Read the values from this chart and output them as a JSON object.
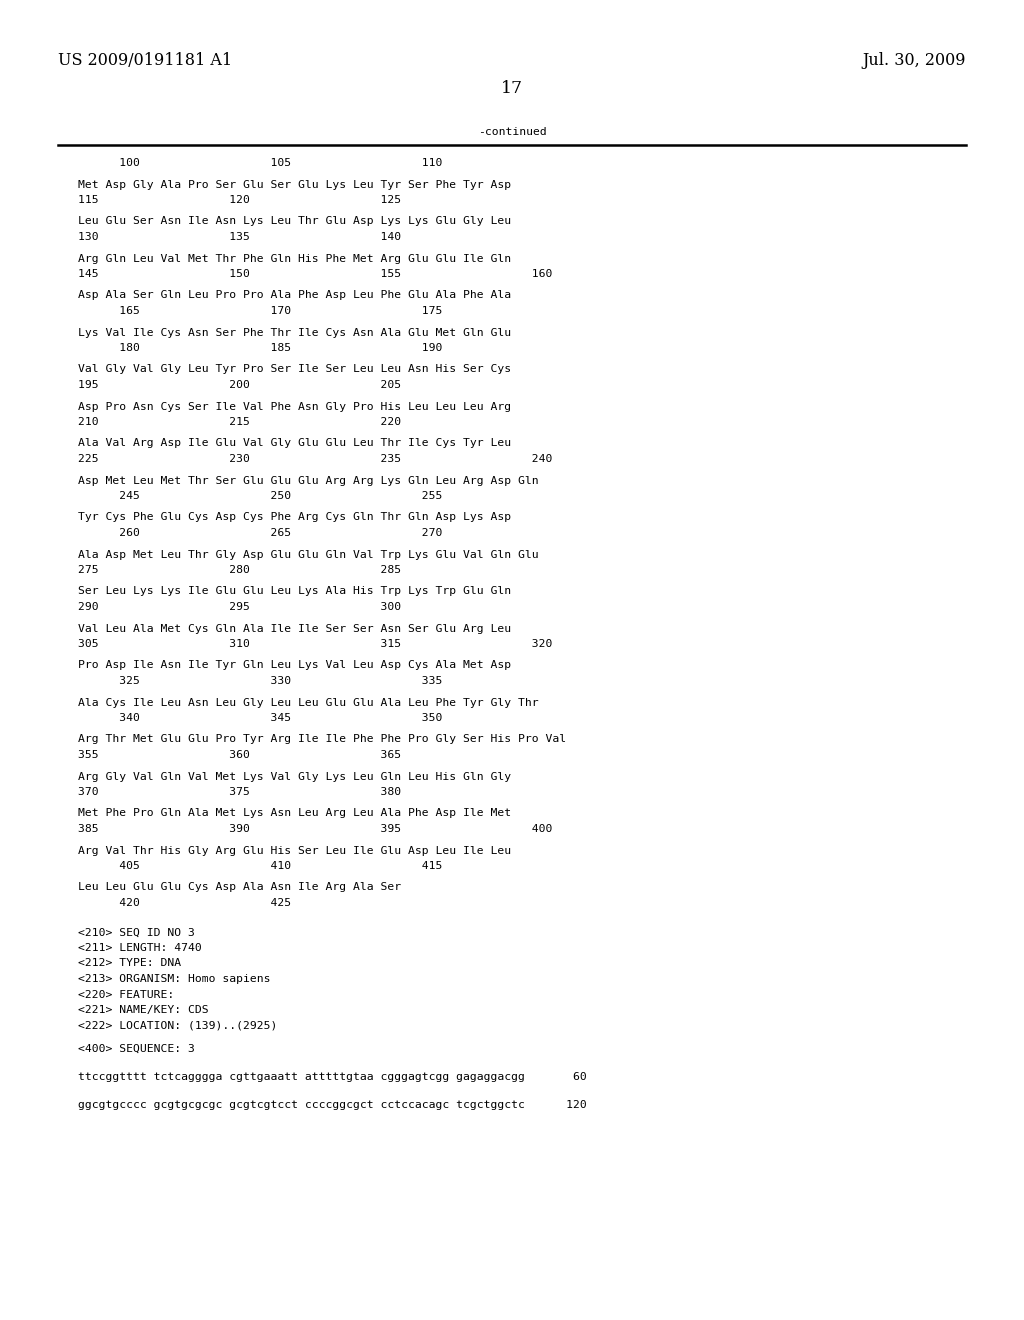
{
  "header_left": "US 2009/0191181 A1",
  "header_right": "Jul. 30, 2009",
  "page_number": "17",
  "continued_label": "-continued",
  "background_color": "#ffffff",
  "text_color": "#000000",
  "seq_blocks": [
    [
      "      100                   105                   110",
      "Met Asp Gly Ala Pro Ser Glu Ser Glu Lys Leu Tyr Ser Phe Tyr Asp",
      "115                   120                   125"
    ],
    [
      "Leu Glu Ser Asn Ile Asn Lys Leu Thr Glu Asp Lys Lys Glu Gly Leu",
      "130                   135                   140"
    ],
    [
      "Arg Gln Leu Val Met Thr Phe Gln His Phe Met Arg Glu Glu Ile Gln",
      "145                   150                   155                   160"
    ],
    [
      "Asp Ala Ser Gln Leu Pro Pro Ala Phe Asp Leu Phe Glu Ala Phe Ala",
      "      165                   170                   175"
    ],
    [
      "Lys Val Ile Cys Asn Ser Phe Thr Ile Cys Asn Ala Glu Met Gln Glu",
      "      180                   185                   190"
    ],
    [
      "Val Gly Val Gly Leu Tyr Pro Ser Ile Ser Leu Leu Asn His Ser Cys",
      "195                   200                   205"
    ],
    [
      "Asp Pro Asn Cys Ser Ile Val Phe Asn Gly Pro His Leu Leu Leu Arg",
      "210                   215                   220"
    ],
    [
      "Ala Val Arg Asp Ile Glu Val Gly Glu Glu Leu Thr Ile Cys Tyr Leu",
      "225                   230                   235                   240"
    ],
    [
      "Asp Met Leu Met Thr Ser Glu Glu Glu Arg Arg Lys Gln Leu Arg Asp Gln",
      "      245                   250                   255"
    ],
    [
      "Tyr Cys Phe Glu Cys Asp Cys Phe Arg Cys Gln Thr Gln Asp Lys Asp",
      "      260                   265                   270"
    ],
    [
      "Ala Asp Met Leu Thr Gly Asp Glu Glu Gln Val Trp Lys Glu Val Gln Glu",
      "275                   280                   285"
    ],
    [
      "Ser Leu Lys Lys Ile Glu Glu Leu Lys Ala His Trp Lys Trp Glu Gln",
      "290                   295                   300"
    ],
    [
      "Val Leu Ala Met Cys Gln Ala Ile Ile Ser Ser Asn Ser Glu Arg Leu",
      "305                   310                   315                   320"
    ],
    [
      "Pro Asp Ile Asn Ile Tyr Gln Leu Lys Val Leu Asp Cys Ala Met Asp",
      "      325                   330                   335"
    ],
    [
      "Ala Cys Ile Leu Asn Leu Gly Leu Leu Glu Glu Ala Leu Phe Tyr Gly Thr",
      "      340                   345                   350"
    ],
    [
      "Arg Thr Met Glu Glu Pro Tyr Arg Ile Ile Phe Phe Pro Gly Ser His Pro Val",
      "355                   360                   365"
    ],
    [
      "Arg Gly Val Gln Val Met Lys Val Gly Lys Leu Gln Leu His Gln Gly",
      "370                   375                   380"
    ],
    [
      "Met Phe Pro Gln Ala Met Lys Asn Leu Arg Leu Ala Phe Asp Ile Met",
      "385                   390                   395                   400"
    ],
    [
      "Arg Val Thr His Gly Arg Glu His Ser Leu Ile Glu Asp Leu Ile Leu",
      "      405                   410                   415"
    ],
    [
      "Leu Leu Glu Glu Cys Asp Ala Asn Ile Arg Ala Ser",
      "      420                   425"
    ]
  ],
  "metadata_lines": [
    "<210> SEQ ID NO 3",
    "<211> LENGTH: 4740",
    "<212> TYPE: DNA",
    "<213> ORGANISM: Homo sapiens",
    "<220> FEATURE:",
    "<221> NAME/KEY: CDS",
    "<222> LOCATION: (139)..(2925)"
  ],
  "sequence_label": "<400> SEQUENCE: 3",
  "dna_lines": [
    "ttccggtttt tctcagggga cgttgaaatt atttttgtaa cgggagtcgg gagaggacgg       60",
    "ggcgtgcccc gcgtgcgcgc gcgtcgtcct ccccggcgct cctccacagc tcgctggctc      120"
  ]
}
